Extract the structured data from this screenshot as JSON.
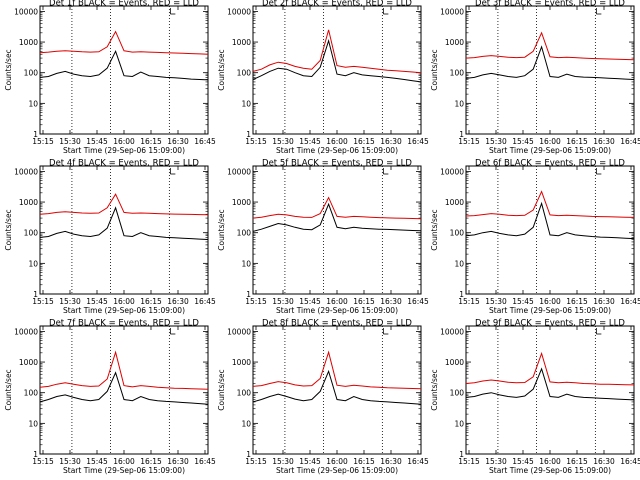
{
  "figure": {
    "xlabel": "Start Time (29-Sep-06 15:09:00)",
    "ylabel": "Counts/sec",
    "x_ticks": [
      "15:15",
      "15:30",
      "15:45",
      "16:00",
      "16:15",
      "16:30",
      "16:45"
    ],
    "y_ticks": [
      "1",
      "10",
      "100",
      "1000",
      "10000"
    ],
    "marker": "L"
  },
  "chart_data": [
    {
      "type": "line",
      "title": "Det 1f BLACK = Events, RED = LLD",
      "ylim": [
        1,
        15000
      ],
      "yscale": "log",
      "x": [
        0,
        5,
        10,
        15,
        20,
        25,
        30,
        35,
        40,
        45,
        50,
        55,
        60,
        65,
        70,
        75,
        80,
        85,
        90,
        95,
        100
      ],
      "series": [
        {
          "name": "BLACK = Events",
          "color": "#000000",
          "values": [
            70,
            75,
            95,
            110,
            90,
            80,
            75,
            85,
            140,
            500,
            80,
            75,
            105,
            80,
            75,
            70,
            68,
            65,
            62,
            60,
            58
          ]
        },
        {
          "name": "RED = LLD",
          "color": "#e00000",
          "values": [
            450,
            470,
            500,
            520,
            500,
            480,
            470,
            480,
            700,
            2200,
            520,
            470,
            480,
            470,
            460,
            450,
            440,
            430,
            420,
            410,
            400
          ]
        }
      ]
    },
    {
      "type": "line",
      "title": "Det 2f BLACK = Events, RED = LLD",
      "ylim": [
        1,
        15000
      ],
      "yscale": "log",
      "x": [
        0,
        5,
        10,
        15,
        20,
        25,
        30,
        35,
        40,
        45,
        50,
        55,
        60,
        65,
        70,
        75,
        80,
        85,
        90,
        95,
        100
      ],
      "series": [
        {
          "name": "BLACK = Events",
          "color": "#000000",
          "values": [
            60,
            80,
            110,
            140,
            130,
            100,
            80,
            75,
            150,
            1100,
            90,
            80,
            100,
            85,
            80,
            75,
            70,
            65,
            60,
            55,
            50
          ]
        },
        {
          "name": "RED = LLD",
          "color": "#e00000",
          "values": [
            110,
            130,
            180,
            220,
            200,
            160,
            140,
            130,
            250,
            2500,
            170,
            150,
            160,
            150,
            140,
            130,
            120,
            115,
            110,
            105,
            100
          ]
        }
      ]
    },
    {
      "type": "line",
      "title": "Det 3f BLACK = Events, RED = LLD",
      "ylim": [
        1,
        15000
      ],
      "yscale": "log",
      "x": [
        0,
        5,
        10,
        15,
        20,
        25,
        30,
        35,
        40,
        45,
        50,
        55,
        60,
        65,
        70,
        75,
        80,
        85,
        90,
        95,
        100
      ],
      "series": [
        {
          "name": "BLACK = Events",
          "color": "#000000",
          "values": [
            65,
            70,
            85,
            95,
            85,
            75,
            70,
            80,
            130,
            700,
            75,
            70,
            90,
            75,
            72,
            70,
            68,
            66,
            64,
            62,
            60
          ]
        },
        {
          "name": "RED = LLD",
          "color": "#e00000",
          "values": [
            300,
            310,
            340,
            360,
            340,
            320,
            310,
            320,
            500,
            2000,
            330,
            310,
            320,
            310,
            300,
            290,
            285,
            280,
            275,
            270,
            265
          ]
        }
      ]
    },
    {
      "type": "line",
      "title": "Det 4f BLACK = Events, RED = LLD",
      "ylim": [
        1,
        15000
      ],
      "yscale": "log",
      "x": [
        0,
        5,
        10,
        15,
        20,
        25,
        30,
        35,
        40,
        45,
        50,
        55,
        60,
        65,
        70,
        75,
        80,
        85,
        90,
        95,
        100
      ],
      "series": [
        {
          "name": "BLACK = Events",
          "color": "#000000",
          "values": [
            70,
            75,
            95,
            110,
            90,
            80,
            75,
            85,
            140,
            650,
            80,
            75,
            100,
            80,
            75,
            70,
            68,
            66,
            64,
            62,
            60
          ]
        },
        {
          "name": "RED = LLD",
          "color": "#e00000",
          "values": [
            400,
            420,
            460,
            480,
            460,
            440,
            430,
            440,
            650,
            1800,
            460,
            430,
            440,
            430,
            420,
            410,
            405,
            400,
            395,
            390,
            385
          ]
        }
      ]
    },
    {
      "type": "line",
      "title": "Det 5f BLACK = Events, RED = LLD",
      "ylim": [
        1,
        15000
      ],
      "yscale": "log",
      "x": [
        0,
        5,
        10,
        15,
        20,
        25,
        30,
        35,
        40,
        45,
        50,
        55,
        60,
        65,
        70,
        75,
        80,
        85,
        90,
        95,
        100
      ],
      "series": [
        {
          "name": "BLACK = Events",
          "color": "#000000",
          "values": [
            110,
            130,
            160,
            200,
            180,
            150,
            130,
            125,
            180,
            850,
            150,
            135,
            150,
            140,
            135,
            130,
            128,
            125,
            122,
            118,
            115
          ]
        },
        {
          "name": "RED = LLD",
          "color": "#e00000",
          "values": [
            300,
            320,
            360,
            400,
            380,
            340,
            320,
            315,
            420,
            1400,
            340,
            320,
            340,
            330,
            320,
            310,
            305,
            300,
            295,
            290,
            285
          ]
        }
      ]
    },
    {
      "type": "line",
      "title": "Det 6f BLACK = Events, RED = LLD",
      "ylim": [
        1,
        15000
      ],
      "yscale": "log",
      "x": [
        0,
        5,
        10,
        15,
        20,
        25,
        30,
        35,
        40,
        45,
        50,
        55,
        60,
        65,
        70,
        75,
        80,
        85,
        90,
        95,
        100
      ],
      "series": [
        {
          "name": "BLACK = Events",
          "color": "#000000",
          "values": [
            80,
            85,
            100,
            110,
            95,
            85,
            80,
            90,
            150,
            900,
            85,
            80,
            100,
            85,
            80,
            75,
            72,
            70,
            68,
            66,
            64
          ]
        },
        {
          "name": "RED = LLD",
          "color": "#e00000",
          "values": [
            350,
            360,
            390,
            420,
            400,
            370,
            360,
            370,
            550,
            2200,
            380,
            360,
            370,
            360,
            350,
            340,
            335,
            330,
            325,
            320,
            315
          ]
        }
      ]
    },
    {
      "type": "line",
      "title": "Det 7f BLACK = Events, RED = LLD",
      "ylim": [
        1,
        15000
      ],
      "yscale": "log",
      "x": [
        0,
        5,
        10,
        15,
        20,
        25,
        30,
        35,
        40,
        45,
        50,
        55,
        60,
        65,
        70,
        75,
        80,
        85,
        90,
        95,
        100
      ],
      "series": [
        {
          "name": "BLACK = Events",
          "color": "#000000",
          "values": [
            50,
            60,
            75,
            85,
            70,
            60,
            55,
            60,
            110,
            450,
            60,
            55,
            75,
            60,
            55,
            52,
            50,
            48,
            46,
            44,
            42
          ]
        },
        {
          "name": "RED = LLD",
          "color": "#e00000",
          "values": [
            150,
            160,
            190,
            210,
            190,
            170,
            160,
            165,
            280,
            2100,
            170,
            155,
            170,
            160,
            150,
            145,
            140,
            138,
            135,
            132,
            130
          ]
        }
      ]
    },
    {
      "type": "line",
      "title": "Det 8f BLACK = Events, RED = LLD",
      "ylim": [
        1,
        15000
      ],
      "yscale": "log",
      "x": [
        0,
        5,
        10,
        15,
        20,
        25,
        30,
        35,
        40,
        45,
        50,
        55,
        60,
        65,
        70,
        75,
        80,
        85,
        90,
        95,
        100
      ],
      "series": [
        {
          "name": "BLACK = Events",
          "color": "#000000",
          "values": [
            50,
            60,
            75,
            90,
            75,
            62,
            55,
            60,
            110,
            500,
            60,
            55,
            75,
            60,
            55,
            52,
            50,
            48,
            46,
            44,
            42
          ]
        },
        {
          "name": "RED = LLD",
          "color": "#e00000",
          "values": [
            160,
            170,
            200,
            230,
            210,
            180,
            165,
            170,
            290,
            2100,
            175,
            160,
            175,
            165,
            155,
            150,
            145,
            142,
            140,
            137,
            135
          ]
        }
      ]
    },
    {
      "type": "line",
      "title": "Det 9f BLACK = Events, RED = LLD",
      "ylim": [
        1,
        15000
      ],
      "yscale": "log",
      "x": [
        0,
        5,
        10,
        15,
        20,
        25,
        30,
        35,
        40,
        45,
        50,
        55,
        60,
        65,
        70,
        75,
        80,
        85,
        90,
        95,
        100
      ],
      "series": [
        {
          "name": "BLACK = Events",
          "color": "#000000",
          "values": [
            70,
            75,
            90,
            100,
            85,
            75,
            70,
            78,
            130,
            600,
            75,
            70,
            90,
            75,
            70,
            68,
            66,
            64,
            62,
            60,
            58
          ]
        },
        {
          "name": "RED = LLD",
          "color": "#e00000",
          "values": [
            200,
            210,
            240,
            260,
            240,
            220,
            210,
            215,
            330,
            1900,
            225,
            210,
            220,
            210,
            200,
            195,
            190,
            188,
            185,
            182,
            180
          ]
        }
      ]
    }
  ]
}
